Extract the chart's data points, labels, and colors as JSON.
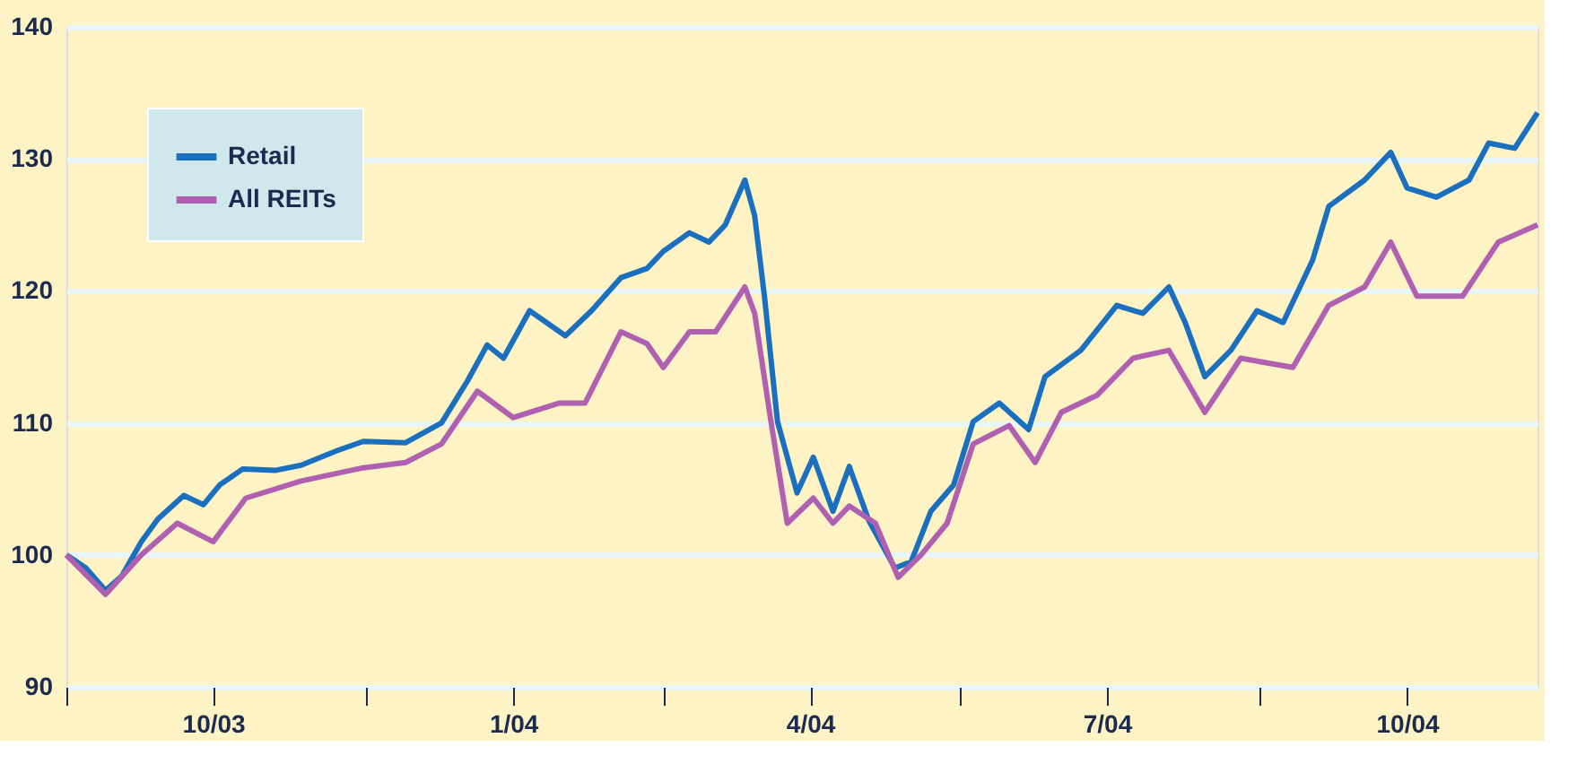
{
  "chart_data": {
    "type": "line",
    "xlim": [
      "2003-10-01",
      "2004-12-25"
    ],
    "ylim": [
      90,
      140
    ],
    "yticks": [
      90,
      100,
      110,
      120,
      130,
      140
    ],
    "xticks": [
      {
        "value": "2003-10-01",
        "label": null
      },
      {
        "value": "2003-11-15",
        "label": "10/03"
      },
      {
        "value": "2004-01-01",
        "label": null
      },
      {
        "value": "2004-02-15",
        "label": "1/04"
      },
      {
        "value": "2004-04-01",
        "label": null
      },
      {
        "value": "2004-05-16",
        "label": "4/04"
      },
      {
        "value": "2004-07-01",
        "label": null
      },
      {
        "value": "2004-08-15",
        "label": "7/04"
      },
      {
        "value": "2004-10-01",
        "label": null
      },
      {
        "value": "2004-11-15",
        "label": "10/04"
      }
    ],
    "grid": "y",
    "legend": "top left",
    "line_style": "solid",
    "marker": "none",
    "series": [
      {
        "name": "Retail",
        "color": "#1a6fbf",
        "x": [
          "2003-10-01",
          "2003-10-07",
          "2003-10-13",
          "2003-10-18",
          "2003-10-24",
          "2003-10-29",
          "2003-11-06",
          "2003-11-12",
          "2003-11-17",
          "2003-11-24",
          "2003-12-04",
          "2003-12-12",
          "2003-12-23",
          "2003-12-31",
          "2004-01-13",
          "2004-01-24",
          "2004-02-01",
          "2004-02-07",
          "2004-02-12",
          "2004-02-20",
          "2004-03-02",
          "2004-03-10",
          "2004-03-19",
          "2004-03-27",
          "2004-04-01",
          "2004-04-09",
          "2004-04-15",
          "2004-04-20",
          "2004-04-26",
          "2004-04-29",
          "2004-05-02",
          "2004-05-06",
          "2004-05-12",
          "2004-05-17",
          "2004-05-23",
          "2004-05-28",
          "2004-06-03",
          "2004-06-11",
          "2004-06-16",
          "2004-06-22",
          "2004-06-29",
          "2004-07-05",
          "2004-07-13",
          "2004-07-22",
          "2004-07-27",
          "2004-08-07",
          "2004-08-18",
          "2004-08-26",
          "2004-09-03",
          "2004-09-08",
          "2004-09-14",
          "2004-09-22",
          "2004-09-30",
          "2004-10-08",
          "2004-10-17",
          "2004-10-22",
          "2004-11-02",
          "2004-11-10",
          "2004-11-15",
          "2004-11-24",
          "2004-12-04",
          "2004-12-10",
          "2004-12-18",
          "2004-12-25"
        ],
        "values": [
          100,
          99,
          97.3,
          98.4,
          101,
          102.7,
          104.5,
          103.8,
          105.3,
          106.5,
          106.4,
          106.8,
          107.9,
          108.6,
          108.5,
          110,
          113.2,
          115.9,
          114.9,
          118.5,
          116.6,
          118.5,
          121,
          121.7,
          123,
          124.4,
          123.7,
          125,
          128.4,
          125.7,
          119.6,
          110.1,
          104.7,
          107.4,
          103.3,
          106.7,
          102.6,
          99,
          99.5,
          103.3,
          105.3,
          110.1,
          111.5,
          109.5,
          113.5,
          115.5,
          118.9,
          118.3,
          120.3,
          117.6,
          113.5,
          115.5,
          118.5,
          117.6,
          122.3,
          126.4,
          128.4,
          130.5,
          127.8,
          127.1,
          128.4,
          131.2,
          130.8,
          133.5
        ]
      },
      {
        "name": "All REITs",
        "color": "#b060b0",
        "x": [
          "2003-10-01",
          "2003-10-13",
          "2003-10-24",
          "2003-11-04",
          "2003-11-15",
          "2003-11-25",
          "2003-12-12",
          "2003-12-31",
          "2004-01-13",
          "2004-01-24",
          "2004-02-04",
          "2004-02-15",
          "2004-02-29",
          "2004-03-08",
          "2004-03-19",
          "2004-03-27",
          "2004-04-01",
          "2004-04-09",
          "2004-04-17",
          "2004-04-26",
          "2004-04-29",
          "2004-05-04",
          "2004-05-09",
          "2004-05-17",
          "2004-05-23",
          "2004-05-28",
          "2004-06-05",
          "2004-06-12",
          "2004-06-19",
          "2004-06-27",
          "2004-07-05",
          "2004-07-16",
          "2004-07-24",
          "2004-08-01",
          "2004-08-12",
          "2004-08-23",
          "2004-09-03",
          "2004-09-14",
          "2004-09-25",
          "2004-10-11",
          "2004-10-22",
          "2004-11-02",
          "2004-11-10",
          "2004-11-18",
          "2004-12-02",
          "2004-12-13",
          "2004-12-25"
        ],
        "values": [
          100,
          97,
          100,
          102.4,
          101,
          104.3,
          105.6,
          106.6,
          107,
          108.4,
          112.4,
          110.4,
          111.5,
          111.5,
          116.9,
          116,
          114.2,
          116.9,
          116.9,
          120.3,
          118.3,
          110.1,
          102.4,
          104.3,
          102.4,
          103.7,
          102.4,
          98.3,
          100,
          102.4,
          108.4,
          109.8,
          107,
          110.8,
          112.1,
          114.9,
          115.5,
          110.8,
          114.9,
          114.2,
          118.9,
          120.3,
          123.7,
          119.6,
          119.6,
          123.7,
          125
        ]
      }
    ]
  }
}
